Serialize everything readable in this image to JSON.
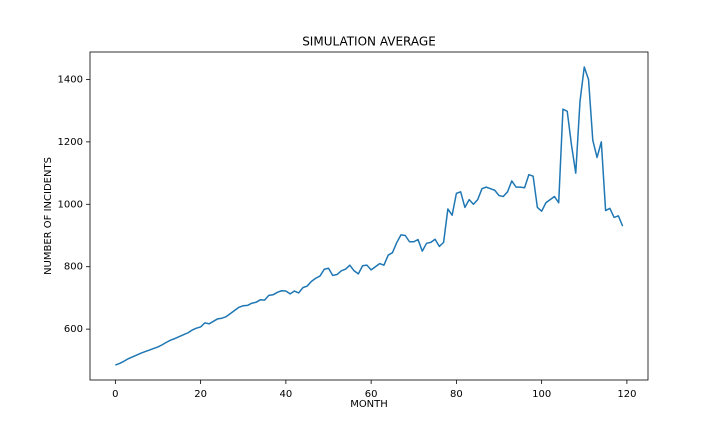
{
  "chart_data": {
    "type": "line",
    "title": "SIMULATION AVERAGE",
    "x_label": "MONTH",
    "y_label": "NUMBER OF INCIDENTS",
    "x": [
      0,
      1,
      2,
      3,
      4,
      5,
      6,
      7,
      8,
      9,
      10,
      11,
      12,
      13,
      14,
      15,
      16,
      17,
      18,
      19,
      20,
      21,
      22,
      23,
      24,
      25,
      26,
      27,
      28,
      29,
      30,
      31,
      32,
      33,
      34,
      35,
      36,
      37,
      38,
      39,
      40,
      41,
      42,
      43,
      44,
      45,
      46,
      47,
      48,
      49,
      50,
      51,
      52,
      53,
      54,
      55,
      56,
      57,
      58,
      59,
      60,
      61,
      62,
      63,
      64,
      65,
      66,
      67,
      68,
      69,
      70,
      71,
      72,
      73,
      74,
      75,
      76,
      77,
      78,
      79,
      80,
      81,
      82,
      83,
      84,
      85,
      86,
      87,
      88,
      89,
      90,
      91,
      92,
      93,
      94,
      95,
      96,
      97,
      98,
      99,
      100,
      101,
      102,
      103,
      104,
      105,
      106,
      107,
      108,
      109,
      110,
      111,
      112,
      113,
      114,
      115,
      116,
      117,
      118,
      119
    ],
    "series": [
      {
        "name": "average",
        "color": "#1f77b4",
        "values": [
          485,
          490,
          497,
          505,
          511,
          517,
          523,
          528,
          533,
          538,
          543,
          550,
          558,
          565,
          570,
          576,
          582,
          588,
          597,
          603,
          607,
          620,
          617,
          625,
          633,
          635,
          640,
          650,
          660,
          670,
          675,
          676,
          683,
          686,
          694,
          693,
          708,
          710,
          718,
          723,
          722,
          713,
          722,
          716,
          733,
          738,
          753,
          763,
          770,
          792,
          795,
          772,
          775,
          787,
          792,
          805,
          787,
          777,
          803,
          805,
          790,
          800,
          810,
          805,
          837,
          845,
          877,
          902,
          900,
          880,
          880,
          887,
          850,
          875,
          878,
          888,
          865,
          878,
          985,
          965,
          1035,
          1040,
          990,
          1015,
          1000,
          1015,
          1050,
          1055,
          1050,
          1045,
          1028,
          1025,
          1040,
          1075,
          1055,
          1055,
          1053,
          1095,
          1090,
          990,
          978,
          1005,
          1015,
          1025,
          1005,
          1305,
          1298,
          1190,
          1100,
          1330,
          1440,
          1400,
          1205,
          1150,
          1200,
          980,
          987,
          958,
          963,
          930
        ]
      }
    ],
    "xlim": [
      -5.95,
      124.95
    ],
    "ylim": [
      437,
      1488
    ],
    "xticks": [
      0,
      20,
      40,
      60,
      80,
      100,
      120
    ],
    "yticks": [
      600,
      800,
      1000,
      1200,
      1400
    ],
    "grid": false
  }
}
